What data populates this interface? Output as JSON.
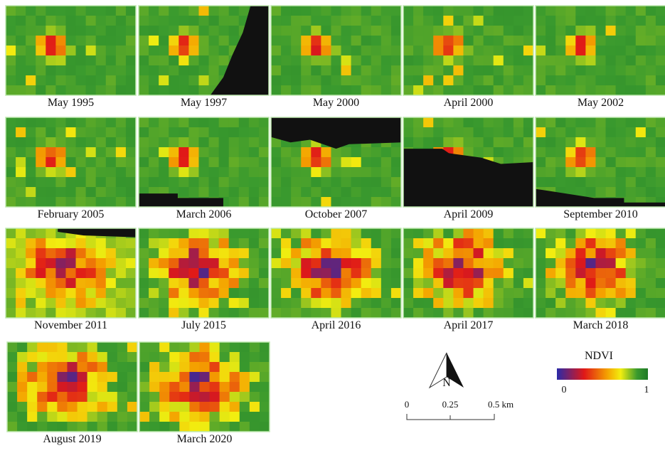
{
  "panels": [
    "May 1995",
    "May 1997",
    "May 2000",
    "April 2000",
    "May 2002",
    "February 2005",
    "March 2006",
    "October 2007",
    "April 2009",
    "September 2010",
    "November 2011",
    "July 2015",
    "April 2016",
    "April 2017",
    "March 2018",
    "August 2019",
    "March 2020"
  ],
  "north_arrow": "N",
  "scale_bar": {
    "labels": [
      "0",
      "0.25",
      "0.5 km"
    ]
  },
  "legend": {
    "title": "NDVI",
    "labels": [
      "0",
      "1"
    ]
  }
}
